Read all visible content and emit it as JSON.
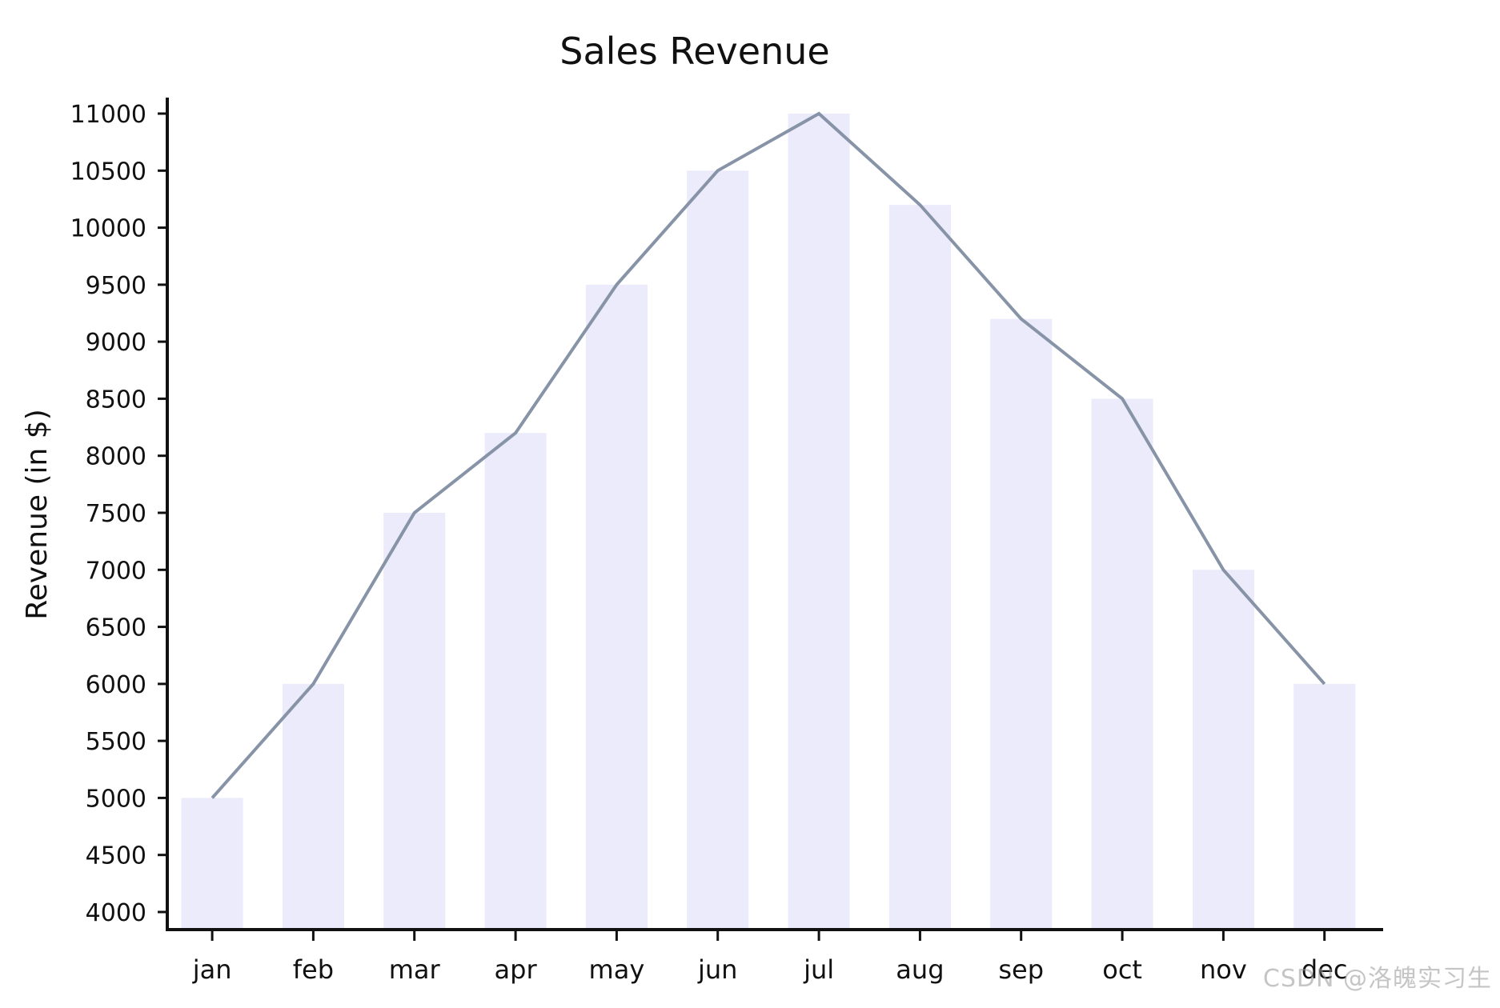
{
  "chart_data": {
    "type": "bar",
    "title": "Sales Revenue",
    "xlabel": "",
    "ylabel": "Revenue (in $)",
    "categories": [
      "jan",
      "feb",
      "mar",
      "apr",
      "may",
      "jun",
      "jul",
      "aug",
      "sep",
      "oct",
      "nov",
      "dec"
    ],
    "series": [
      {
        "type": "bar",
        "values": [
          5000,
          6000,
          7500,
          8200,
          9500,
          10500,
          11000,
          10200,
          9200,
          8500,
          7000,
          6000
        ],
        "color": "#ebebfb"
      },
      {
        "type": "line",
        "values": [
          5000,
          6000,
          7500,
          8200,
          9500,
          10500,
          11000,
          10200,
          9200,
          8500,
          7000,
          6000
        ],
        "color": "#8793a6"
      }
    ],
    "ylim": [
      4000,
      11000
    ],
    "yticks": [
      4000,
      4500,
      5000,
      5500,
      6000,
      6500,
      7000,
      7500,
      8000,
      8500,
      9000,
      9500,
      10000,
      10500,
      11000
    ],
    "grid": false,
    "legend": "none"
  },
  "watermark": "CSDN @洛魄实习生",
  "colors": {
    "axis": "#111111",
    "text": "#111111",
    "background": "#ffffff"
  }
}
